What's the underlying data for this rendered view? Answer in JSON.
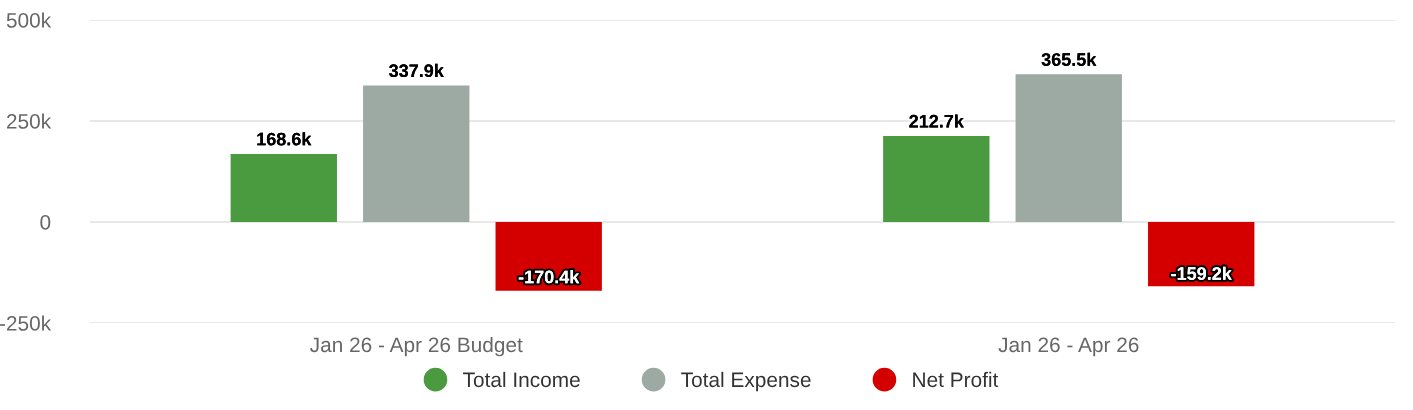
{
  "chart_data": {
    "type": "bar",
    "categories": [
      "Jan 26 - Apr 26 Budget",
      "Jan 26 - Apr 26"
    ],
    "series": [
      {
        "name": "Total Income",
        "color": "#4a9a40",
        "values": [
          168600,
          212700
        ],
        "value_labels": [
          "168.6k",
          "212.7k"
        ]
      },
      {
        "name": "Total Expense",
        "color": "#9daaa3",
        "values": [
          337900,
          365500
        ],
        "value_labels": [
          "337.9k",
          "365.5k"
        ]
      },
      {
        "name": "Net Profit",
        "color": "#d40000",
        "values": [
          -170400,
          -159200
        ],
        "value_labels": [
          "-170.4k",
          "-159.2k"
        ]
      }
    ],
    "ylim": [
      -250000,
      500000
    ],
    "yticks": [
      {
        "value": -250000,
        "label": "-250k"
      },
      {
        "value": 0,
        "label": "0"
      },
      {
        "value": 250000,
        "label": "250k"
      },
      {
        "value": 500000,
        "label": "500k"
      }
    ],
    "grid": "y",
    "legend": "bottom"
  }
}
